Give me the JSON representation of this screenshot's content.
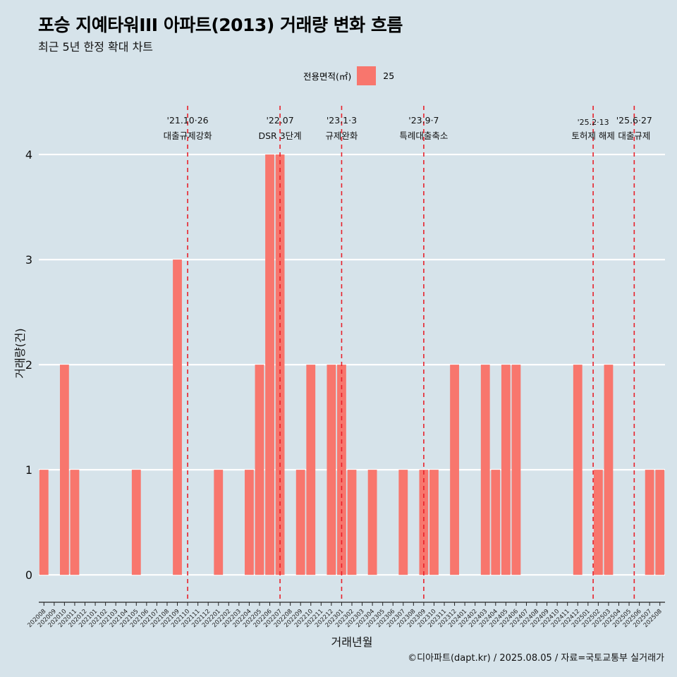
{
  "title": "포승 지예타워III 아파트(2013) 거래량 변화 흐름",
  "subtitle": "최근 5년 한정 확대 차트",
  "legend": {
    "title": "전용면적(㎡)",
    "entry": "25",
    "color": "#f8766d"
  },
  "caption": "©디아파트(dapt.kr) / 2025.08.05 / 자료=국토교통부 실거래가",
  "colors": {
    "background": "#d6e3ea",
    "bar": "#f8766d",
    "gridline": "#ffffff",
    "event_line": "#e8202a"
  },
  "chart_data": {
    "type": "bar",
    "xlabel": "거래년월",
    "ylabel": "거래량(건)",
    "ylim": [
      -0.18,
      4.45
    ],
    "yticks": [
      0,
      1,
      2,
      3,
      4
    ],
    "grid": "horizontal",
    "legend_position": "top",
    "categories": [
      "202008",
      "202009",
      "202010",
      "202011",
      "202012",
      "202101",
      "202102",
      "202103",
      "202104",
      "202105",
      "202106",
      "202107",
      "202108",
      "202109",
      "202110",
      "202111",
      "202112",
      "202201",
      "202202",
      "202203",
      "202204",
      "202205",
      "202206",
      "202207",
      "202208",
      "202209",
      "202210",
      "202211",
      "202212",
      "202301",
      "202302",
      "202303",
      "202304",
      "202305",
      "202306",
      "202307",
      "202308",
      "202309",
      "202310",
      "202311",
      "202312",
      "202401",
      "202402",
      "202403",
      "202404",
      "202405",
      "202406",
      "202407",
      "202408",
      "202409",
      "202410",
      "202411",
      "202412",
      "202501",
      "202502",
      "202503",
      "202504",
      "202505",
      "202506",
      "202507",
      "202508"
    ],
    "series": [
      {
        "name": "25",
        "values": [
          1,
          0,
          2,
          1,
          0,
          0,
          0,
          0,
          0,
          1,
          0,
          0,
          0,
          3,
          0,
          0,
          0,
          1,
          0,
          0,
          1,
          2,
          4,
          4,
          0,
          1,
          2,
          0,
          2,
          2,
          1,
          0,
          1,
          0,
          0,
          1,
          0,
          1,
          1,
          0,
          2,
          0,
          0,
          2,
          1,
          2,
          2,
          0,
          0,
          0,
          0,
          0,
          2,
          0,
          1,
          2,
          0,
          0,
          0,
          1,
          1
        ]
      }
    ],
    "annotations": [
      {
        "category_pos": 14.5,
        "date": "'21.10·26",
        "label": "대출규제강화"
      },
      {
        "category_pos": 23.5,
        "date": "'22.07",
        "label": "DSR 3단계"
      },
      {
        "category_pos": 29.5,
        "date": "'23.1·3",
        "label": "규제완화"
      },
      {
        "category_pos": 37.5,
        "date": "'23.9·7",
        "label": "특례대출축소"
      },
      {
        "category_pos": 54.0,
        "date": "'25.2·13",
        "label": "토허제 해제"
      },
      {
        "category_pos": 58.0,
        "date": "'25.6·27",
        "label": "대출규제"
      }
    ]
  }
}
